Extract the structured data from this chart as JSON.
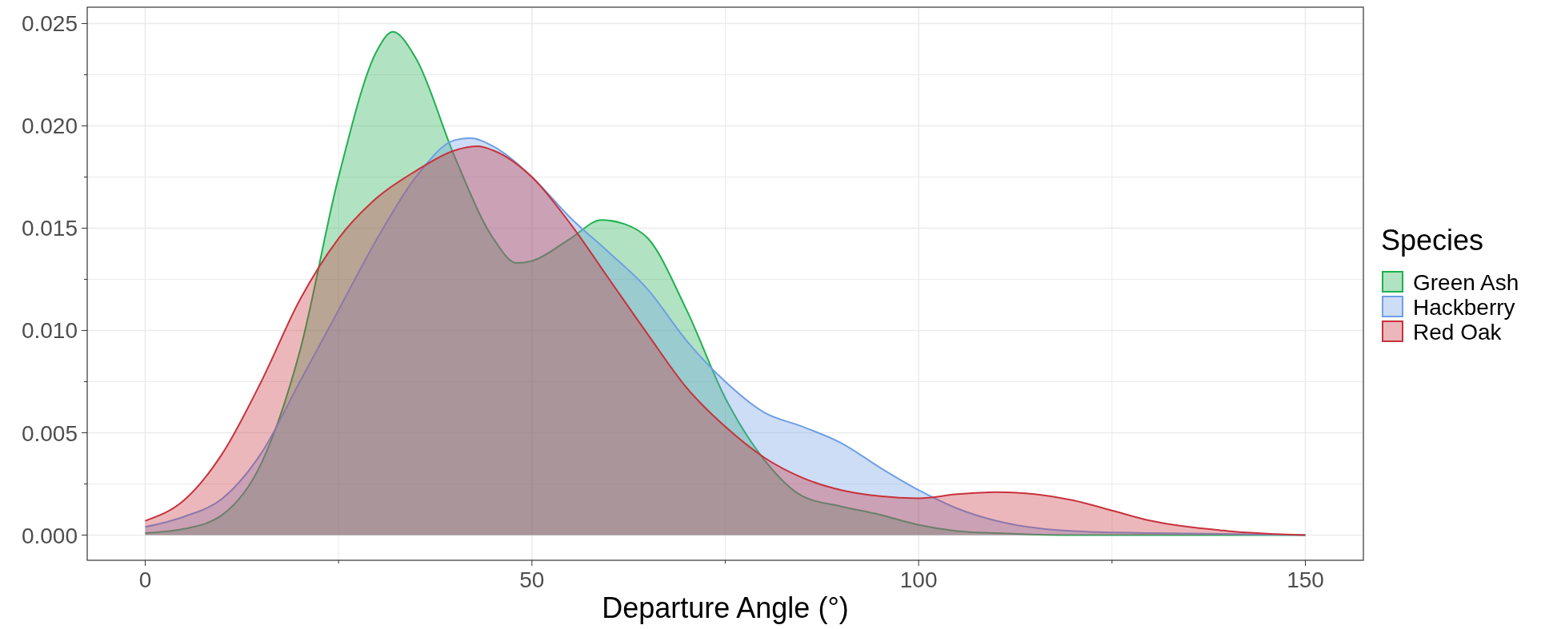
{
  "chart_data": {
    "type": "area",
    "xlabel": "Departure Angle (°)",
    "legend_title": "Species",
    "legend": "right",
    "grid": true,
    "xlim": [
      -7.5,
      157.5
    ],
    "xticks": [
      0,
      {
        "value": 25,
        "label": null
      },
      50,
      {
        "value": 75,
        "label": null
      },
      100,
      {
        "value": 125,
        "label": null
      },
      150
    ],
    "ylim": [
      -0.00123,
      0.0258
    ],
    "yticks": [
      {
        "value": 0,
        "label": "0.000"
      },
      {
        "value": 0.0025,
        "label": null
      },
      {
        "value": 0.005,
        "label": "0.005"
      },
      {
        "value": 0.0075,
        "label": null
      },
      {
        "value": 0.01,
        "label": "0.010"
      },
      {
        "value": 0.0125,
        "label": null
      },
      {
        "value": 0.015,
        "label": "0.015"
      },
      {
        "value": 0.0175,
        "label": null
      },
      {
        "value": 0.02,
        "label": "0.020"
      },
      {
        "value": 0.0225,
        "label": null
      },
      {
        "value": 0.025,
        "label": "0.025"
      }
    ],
    "series": [
      {
        "name": "Green Ash",
        "color": "#1fb050",
        "x": [
          0,
          5,
          10,
          15,
          20,
          25,
          30,
          32,
          35,
          40,
          45,
          48,
          50,
          55,
          59,
          62,
          65,
          70,
          75,
          80,
          85,
          90,
          95,
          100,
          105,
          110,
          120,
          150
        ],
        "values": [
          0.0001,
          0.0003,
          0.001,
          0.0035,
          0.009,
          0.0175,
          0.0237,
          0.0246,
          0.0233,
          0.0185,
          0.0145,
          0.0133,
          0.0134,
          0.0145,
          0.0154,
          0.0152,
          0.0145,
          0.011,
          0.0067,
          0.0037,
          0.0019,
          0.0014,
          0.001,
          0.0005,
          0.0002,
          0.0001,
          0,
          0
        ]
      },
      {
        "name": "Hackberry",
        "color": "#6f9fe6",
        "x": [
          0,
          5,
          10,
          15,
          20,
          25,
          30,
          35,
          40,
          42,
          45,
          50,
          55,
          60,
          65,
          70,
          75,
          80,
          85,
          90,
          95,
          100,
          105,
          110,
          120,
          130,
          150
        ],
        "values": [
          0.0004,
          0.0009,
          0.0018,
          0.004,
          0.0075,
          0.011,
          0.0145,
          0.0175,
          0.0193,
          0.0194,
          0.019,
          0.0175,
          0.0155,
          0.0138,
          0.012,
          0.0095,
          0.0075,
          0.006,
          0.0053,
          0.0045,
          0.0033,
          0.0022,
          0.0013,
          0.0007,
          0.0002,
          0.0001,
          0
        ]
      },
      {
        "name": "Red Oak",
        "color": "#c8323c",
        "x": [
          0,
          5,
          10,
          15,
          20,
          25,
          30,
          35,
          40,
          43,
          45,
          50,
          55,
          60,
          65,
          70,
          75,
          80,
          85,
          90,
          95,
          100,
          105,
          110,
          115,
          120,
          125,
          130,
          140,
          150
        ],
        "values": [
          0.0007,
          0.0017,
          0.004,
          0.0075,
          0.0115,
          0.0145,
          0.0165,
          0.0178,
          0.0188,
          0.019,
          0.0188,
          0.0175,
          0.0152,
          0.0125,
          0.0098,
          0.0072,
          0.0053,
          0.0038,
          0.0028,
          0.0022,
          0.0019,
          0.0018,
          0.002,
          0.0021,
          0.002,
          0.0017,
          0.0012,
          0.0007,
          0.0002,
          0
        ]
      }
    ]
  }
}
